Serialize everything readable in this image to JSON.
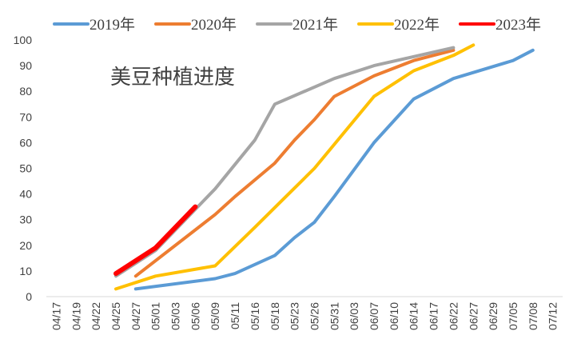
{
  "chart_data": {
    "type": "line",
    "title": "美豆种植进度",
    "xlabel": "",
    "ylabel": "",
    "ylim": [
      0,
      100
    ],
    "yticks": [
      0,
      10,
      20,
      30,
      40,
      50,
      60,
      70,
      80,
      90,
      100
    ],
    "categories": [
      "04/17",
      "04/19",
      "04/22",
      "04/25",
      "04/27",
      "05/01",
      "05/03",
      "05/06",
      "05/09",
      "05/11",
      "05/16",
      "05/18",
      "05/23",
      "05/26",
      "05/31",
      "06/03",
      "06/07",
      "06/10",
      "06/14",
      "06/17",
      "06/22",
      "06/27",
      "06/29",
      "07/05",
      "07/08",
      "07/12"
    ],
    "grid": false,
    "legend_position": "top",
    "series": [
      {
        "name": "2019年",
        "color": "#5B9BD5",
        "width": 4,
        "values": [
          null,
          null,
          null,
          null,
          3,
          null,
          null,
          null,
          7,
          9,
          null,
          16,
          23,
          29,
          39,
          null,
          60,
          null,
          77,
          null,
          85,
          null,
          null,
          92,
          96,
          null
        ]
      },
      {
        "name": "2020年",
        "color": "#ED7D31",
        "width": 4,
        "values": [
          null,
          null,
          null,
          null,
          8,
          null,
          null,
          null,
          32,
          39,
          null,
          52,
          61,
          69,
          78,
          null,
          86,
          null,
          92,
          null,
          96,
          null,
          null,
          null,
          null,
          null
        ]
      },
      {
        "name": "2021年",
        "color": "#A5A5A5",
        "width": 4,
        "values": [
          null,
          null,
          null,
          8,
          null,
          18,
          null,
          null,
          42,
          null,
          61,
          75,
          null,
          null,
          85,
          null,
          90,
          null,
          null,
          null,
          97,
          null,
          null,
          null,
          null,
          null
        ]
      },
      {
        "name": "2022年",
        "color": "#FFC000",
        "width": 4,
        "values": [
          null,
          null,
          null,
          3,
          null,
          8,
          null,
          null,
          12,
          null,
          27,
          null,
          null,
          50,
          null,
          null,
          78,
          null,
          88,
          null,
          94,
          98,
          null,
          null,
          null,
          null
        ]
      },
      {
        "name": "2023年",
        "color": "#FF0000",
        "width": 6,
        "values": [
          null,
          null,
          null,
          9,
          null,
          19,
          null,
          35,
          null,
          null,
          null,
          null,
          null,
          null,
          null,
          null,
          null,
          null,
          null,
          null,
          null,
          null,
          null,
          null,
          null,
          null
        ]
      }
    ]
  }
}
